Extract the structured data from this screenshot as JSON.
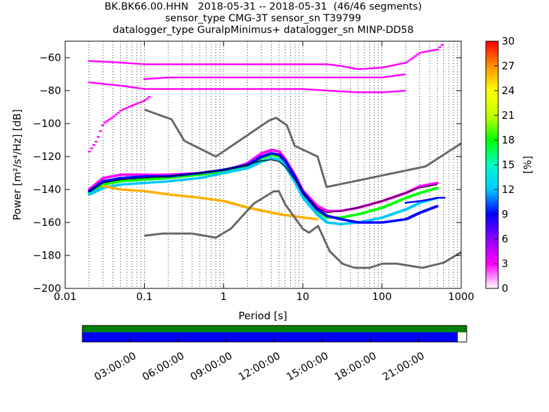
{
  "chart_data": [
    {
      "type": "heatmap",
      "title_lines": [
        "BK.BK66.00.HHN   2018-05-31 -- 2018-05-31  (46/46 segments)",
        "sensor_type CMG-3T sensor_sn T39799",
        "datalogger_type GuralpMinimus+ datalogger_sn MINP-DD58"
      ],
      "xlabel": "Period [s]",
      "ylabel": "Power [m²/s⁴/Hz] [dB]",
      "xscale": "log",
      "xlim": [
        0.01,
        1000
      ],
      "ylim": [
        -200,
        -50
      ],
      "x_ticks": [
        0.01,
        0.1,
        1,
        10,
        100,
        1000
      ],
      "x_tick_labels": [
        "0.01",
        "0.1",
        "1",
        "10",
        "100",
        "1000"
      ],
      "y_ticks": [
        -200,
        -180,
        -160,
        -140,
        -120,
        -100,
        -80,
        -60
      ],
      "y_tick_labels": [
        "−200",
        "−180",
        "−160",
        "−140",
        "−120",
        "−100",
        "−80",
        "−60"
      ],
      "grid": "dotted vertical",
      "colorbar": {
        "label": "[%]",
        "range": [
          0,
          30
        ],
        "ticks": [
          0,
          3,
          6,
          9,
          12,
          15,
          18,
          21,
          24,
          27,
          30
        ],
        "colormap": [
          "#ffffff",
          "#ff00ff",
          "#9000ff",
          "#0000ff",
          "#00c8ff",
          "#00ffc8",
          "#00ff00",
          "#c8ff00",
          "#ffff00",
          "#ff9000",
          "#ff0000"
        ]
      },
      "reference_curves": {
        "color": "#666666",
        "high_noise_model": {
          "x": [
            0.1,
            0.22,
            0.32,
            0.8,
            3.8,
            4.6,
            6.3,
            7.9,
            15.4,
            20,
            354.8,
            1000
          ],
          "y": [
            -91.5,
            -97.4,
            -110.5,
            -120,
            -98,
            -96.5,
            -101,
            -113.5,
            -120,
            -138.5,
            -126,
            -112
          ]
        },
        "low_noise_model": {
          "x": [
            0.1,
            0.17,
            0.4,
            0.8,
            1.24,
            2.4,
            4.3,
            5,
            6,
            10,
            12,
            15.6,
            21.9,
            31.6,
            45,
            70,
            101,
            154,
            328,
            600,
            1000
          ],
          "y": [
            -168,
            -166.7,
            -166.7,
            -169.2,
            -163.7,
            -148.6,
            -141.1,
            -141.1,
            -149,
            -163.8,
            -166.2,
            -162.1,
            -177.5,
            -185,
            -187.5,
            -187.5,
            -185,
            -185,
            -187.5,
            -184.4,
            -178
          ]
        }
      },
      "mode_curve": {
        "color": "#000000",
        "x": [
          0.02,
          0.03,
          0.05,
          0.1,
          0.2,
          0.5,
          1,
          2,
          3,
          4,
          5,
          6,
          8,
          10,
          15,
          20,
          30,
          50,
          100,
          200,
          300,
          500
        ],
        "y": [
          -141,
          -136,
          -134,
          -133,
          -132,
          -130,
          -128,
          -125,
          -122.5,
          -122,
          -123,
          -126,
          -134,
          -142,
          -151,
          -154,
          -153,
          -151,
          -147,
          -142,
          -139,
          -137
        ]
      },
      "density_bands": [
        {
          "x": [
            0.02,
            0.03,
            0.05,
            0.1,
            0.2,
            0.5,
            1,
            2,
            3,
            4,
            5,
            6,
            8,
            10,
            15,
            20,
            30,
            50,
            100,
            200,
            300,
            500
          ],
          "y": [
            -140,
            -133,
            -131,
            -131,
            -131,
            -130,
            -129,
            -124,
            -118,
            -116,
            -117,
            -122,
            -132,
            -141,
            -150,
            -153,
            -153,
            -151,
            -147,
            -142,
            -138,
            -136
          ],
          "color": "#ff00ff"
        },
        {
          "x": [
            0.02,
            0.03,
            0.05,
            0.1,
            0.2,
            0.5,
            1,
            2,
            3,
            4,
            5,
            6,
            8,
            10,
            15,
            20,
            30,
            50,
            100,
            200,
            300,
            500
          ],
          "y": [
            -142,
            -137,
            -135,
            -134,
            -133,
            -131,
            -129,
            -126,
            -121,
            -119,
            -120,
            -124,
            -134,
            -143,
            -153,
            -157,
            -157,
            -155,
            -151,
            -145,
            -142,
            -139
          ],
          "color": "#00ff00"
        },
        {
          "x": [
            0.02,
            0.03,
            0.05,
            0.1,
            0.2,
            0.5,
            1,
            2,
            3,
            4,
            5,
            6,
            8,
            10,
            15,
            20,
            30,
            50,
            100,
            200,
            300,
            500
          ],
          "y": [
            -143,
            -139,
            -137,
            -136,
            -135,
            -133,
            -130,
            -127,
            -123,
            -121,
            -122,
            -126,
            -136,
            -145,
            -155,
            -160,
            -161,
            -160,
            -157,
            -152,
            -148,
            -145
          ],
          "color": "#00c8ff"
        },
        {
          "x": [
            0.03,
            0.05,
            0.1,
            0.2,
            0.5,
            1,
            2,
            5,
            10,
            15
          ],
          "y": [
            -138,
            -140,
            -141,
            -143,
            -145,
            -147,
            -151,
            -155,
            -157,
            -158
          ],
          "color": "#ffb000"
        },
        {
          "x": [
            0.02,
            0.03,
            0.05,
            0.1,
            0.2,
            0.5,
            1,
            2,
            3,
            4,
            5,
            6,
            8,
            10,
            15,
            20,
            30,
            50,
            100,
            200,
            300,
            500
          ],
          "y": [
            -141,
            -135,
            -133,
            -132,
            -132,
            -130,
            -128,
            -125,
            -120,
            -118,
            -119,
            -123,
            -133,
            -142,
            -152,
            -156,
            -158,
            -160,
            -160,
            -158,
            -154,
            -150
          ],
          "color": "#0000ff"
        }
      ],
      "outlier_traces": [
        {
          "x": [
            0.02,
            0.05,
            0.1,
            0.2,
            0.5,
            1,
            2,
            5,
            10,
            20,
            30,
            50,
            100,
            200,
            300,
            500,
            600
          ],
          "y": [
            -62,
            -63,
            -64,
            -64,
            -64,
            -64,
            -64,
            -64,
            -64,
            -64,
            -65,
            -67,
            -66,
            -63,
            -57,
            -55,
            -51
          ],
          "color": "#ff00ff"
        },
        {
          "x": [
            0.02,
            0.05,
            0.1,
            0.2,
            0.5,
            1,
            2,
            5,
            10,
            20,
            50,
            100,
            200
          ],
          "y": [
            -75,
            -77,
            -79,
            -79,
            -79,
            -79,
            -79,
            -79,
            -79,
            -80,
            -81,
            -81,
            -80
          ],
          "color": "#ff00ff"
        },
        {
          "x": [
            0.1,
            0.2,
            0.5,
            1,
            2,
            5,
            10,
            20,
            50,
            100,
            200
          ],
          "y": [
            -73,
            -72,
            -72,
            -72,
            -72,
            -72,
            -72,
            -72,
            -72,
            -72,
            -70
          ],
          "color": "#ff00ff"
        },
        {
          "x": [
            0.02,
            0.025,
            0.03,
            0.04,
            0.05,
            0.07,
            0.1,
            0.12
          ],
          "y": [
            -117,
            -110,
            -100,
            -96,
            -92,
            -89,
            -86,
            -83
          ],
          "color": "#ff00ff"
        },
        {
          "x": [
            200,
            300,
            400,
            500,
            600
          ],
          "y": [
            -148,
            -147,
            -146,
            -145,
            -145
          ],
          "color": "#0000ff"
        }
      ]
    },
    {
      "type": "timeline",
      "x_tick_labels": [
        "03:00:00",
        "06:00:00",
        "09:00:00",
        "12:00:00",
        "15:00:00",
        "18:00:00",
        "21:00:00"
      ],
      "top_bar_color": "#008000",
      "bottom_bar_color": "#0000ff",
      "bottom_bar_fraction": 0.977
    }
  ]
}
